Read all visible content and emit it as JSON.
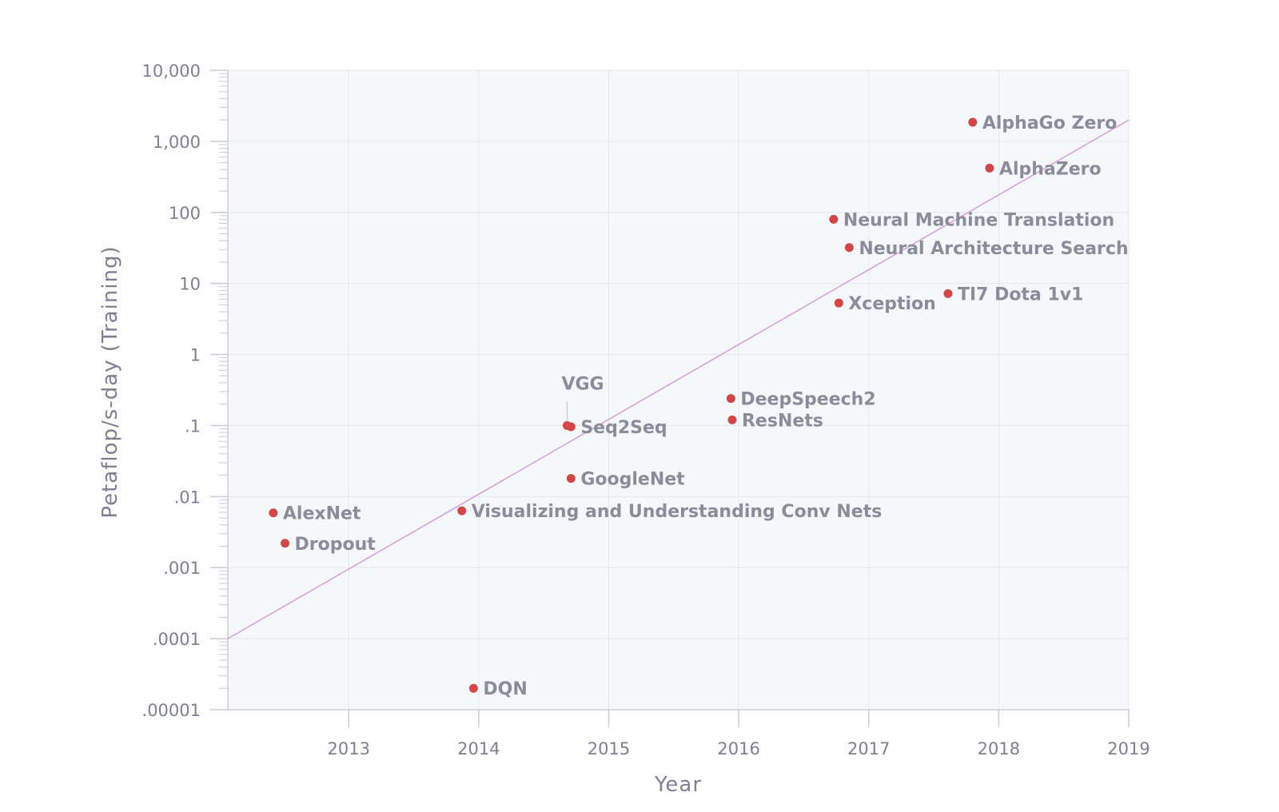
{
  "chart_data": {
    "type": "scatter",
    "title": "",
    "xlabel": "Year",
    "ylabel": "Petaflop/s-day (Training)",
    "xlim": [
      2012.07,
      2019
    ],
    "ylim": [
      1e-05,
      10000
    ],
    "yscale": "log",
    "grid": true,
    "x_tick_values": [
      2013,
      2014,
      2015,
      2016,
      2017,
      2018,
      2019
    ],
    "x_tick_labels": [
      "2013",
      "2014",
      "2015",
      "2016",
      "2017",
      "2018",
      "2019"
    ],
    "y_tick_values": [
      1e-05,
      0.0001,
      0.001,
      0.01,
      0.1,
      1,
      10,
      100,
      1000,
      10000
    ],
    "y_tick_labels": [
      ".00001",
      ".0001",
      ".001",
      ".01",
      ".1",
      "1",
      "10",
      "100",
      "1,000",
      "10,000"
    ],
    "trend_line": {
      "from": [
        2012.07,
        0.0001
      ],
      "to": [
        2019,
        2000
      ],
      "color": "#d99be0"
    },
    "point_color": "#d64545",
    "points": [
      {
        "name": "AlexNet",
        "x": 2012.42,
        "y": 0.0059
      },
      {
        "name": "Dropout",
        "x": 2012.51,
        "y": 0.0022
      },
      {
        "name": "DQN",
        "x": 2013.96,
        "y": 2e-05
      },
      {
        "name": "Visualizing and Understanding Conv Nets",
        "x": 2013.87,
        "y": 0.0063
      },
      {
        "name": "VGG",
        "x": 2014.68,
        "y": 0.1
      },
      {
        "name": "Seq2Seq",
        "x": 2014.71,
        "y": 0.096
      },
      {
        "name": "GoogleNet",
        "x": 2014.71,
        "y": 0.018
      },
      {
        "name": "DeepSpeech2",
        "x": 2015.94,
        "y": 0.24
      },
      {
        "name": "ResNets",
        "x": 2015.95,
        "y": 0.12
      },
      {
        "name": "Neural Machine Translation",
        "x": 2016.73,
        "y": 80
      },
      {
        "name": "Neural Architecture Search",
        "x": 2016.85,
        "y": 32
      },
      {
        "name": "Xception",
        "x": 2016.77,
        "y": 5.3
      },
      {
        "name": "TI7 Dota 1v1",
        "x": 2017.61,
        "y": 7.2
      },
      {
        "name": "AlphaGo Zero",
        "x": 2017.8,
        "y": 1860
      },
      {
        "name": "AlphaZero",
        "x": 2017.93,
        "y": 420
      }
    ]
  }
}
